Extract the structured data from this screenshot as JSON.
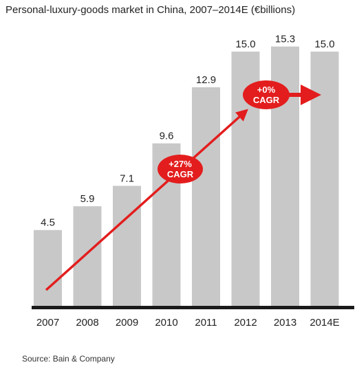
{
  "chart_data": {
    "type": "bar",
    "title": "Personal-luxury-goods market in China, 2007–2014E (€billions)",
    "categories": [
      "2007",
      "2008",
      "2009",
      "2010",
      "2011",
      "2012",
      "2013",
      "2014E"
    ],
    "values": [
      4.5,
      5.9,
      7.1,
      9.6,
      12.9,
      15.0,
      15.3,
      15.0
    ],
    "value_labels": [
      "4.5",
      "5.9",
      "7.1",
      "9.6",
      "12.9",
      "15.0",
      "15.3",
      "15.0"
    ],
    "ylim": [
      0,
      16.5
    ],
    "grid": false,
    "legend": "none",
    "annotations": [
      {
        "line1": "+27%",
        "line2": "CAGR",
        "from_category": "2007",
        "to_category": "2012"
      },
      {
        "line1": "+0%",
        "line2": "CAGR",
        "from_category": "2012",
        "to_category": "2014E"
      }
    ],
    "source": "Source: Bain & Company",
    "colors": {
      "bar": "#c8c8c8",
      "baseline": "#1a1a1a",
      "arrow": "#e31d1d",
      "annotation_text": "#ffffff",
      "text": "#222222"
    }
  }
}
